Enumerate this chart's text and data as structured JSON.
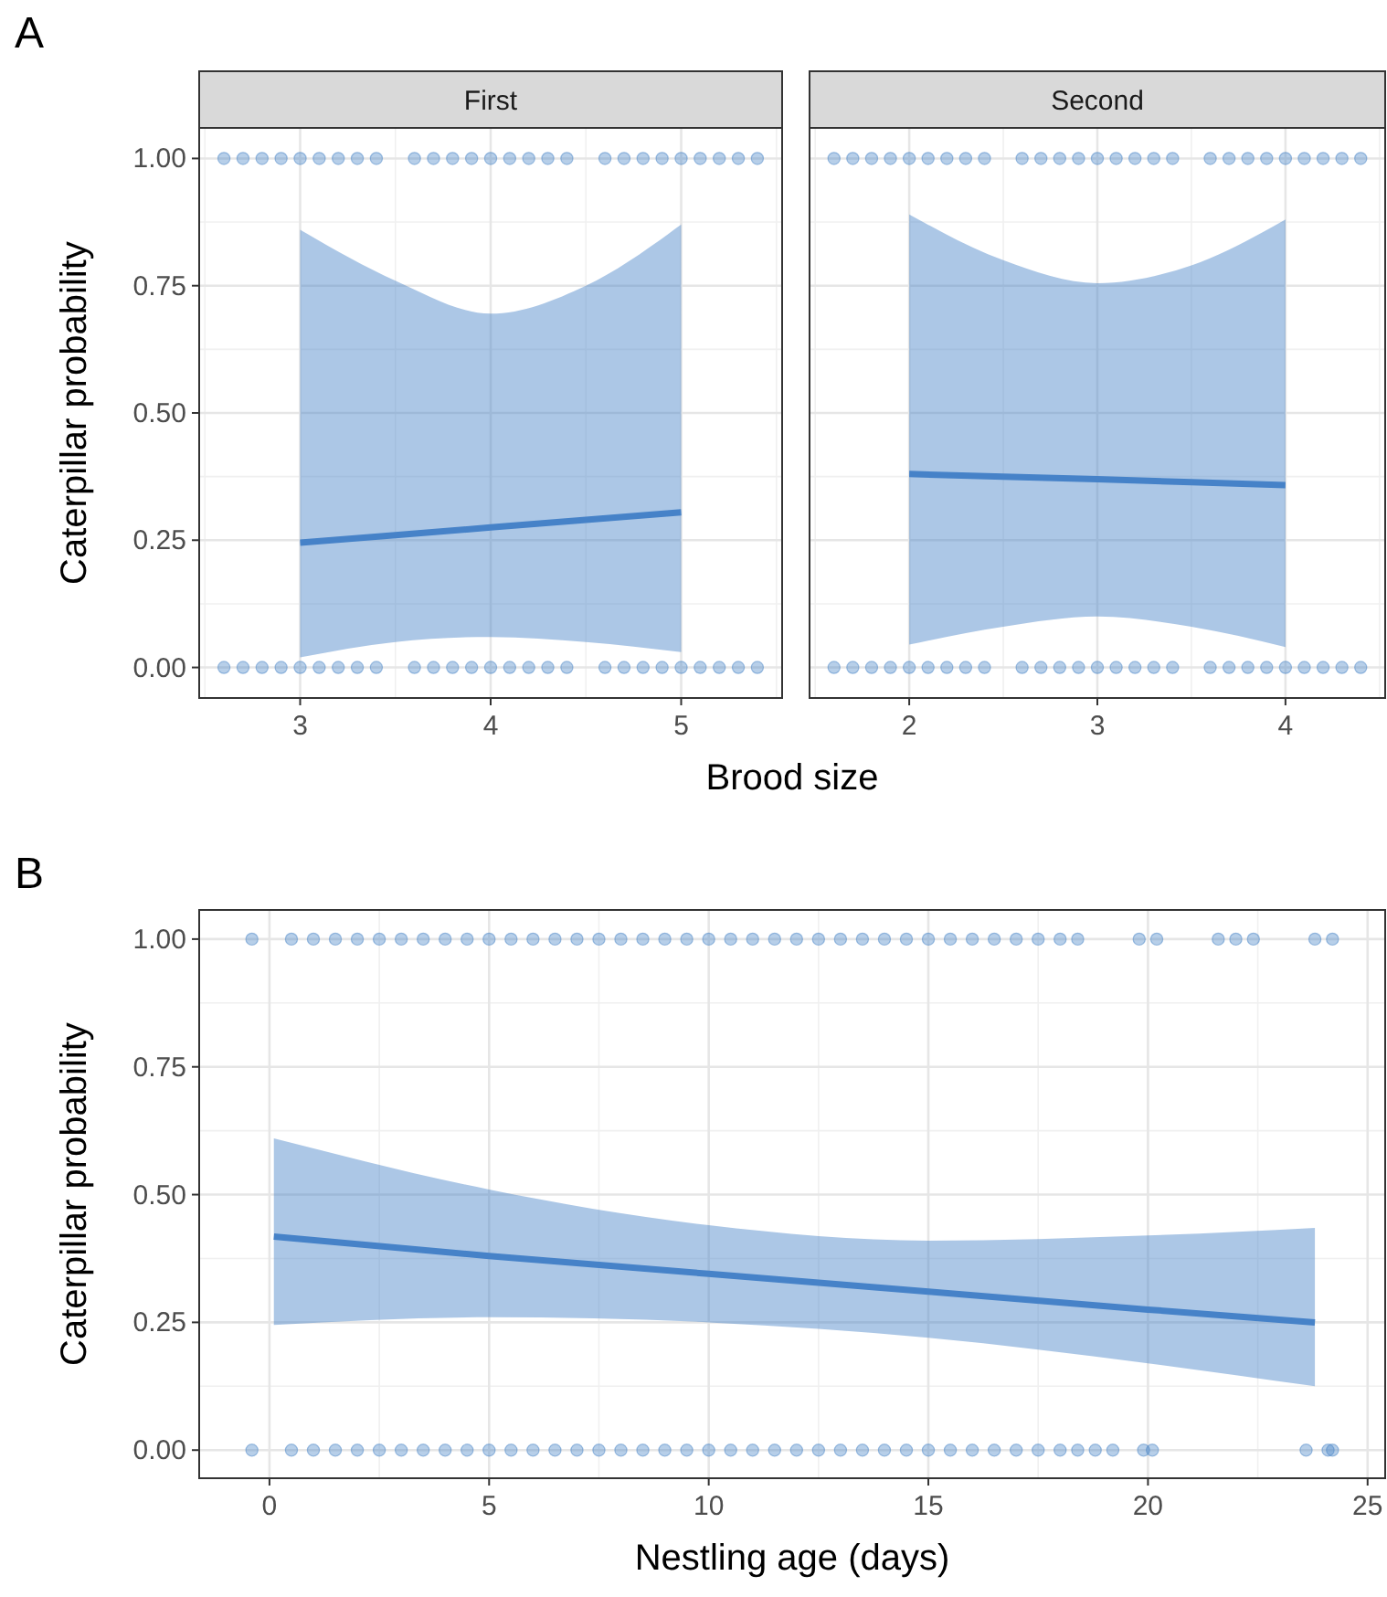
{
  "chart_data": [
    {
      "type": "scatter",
      "title": "A",
      "subtitle": "First",
      "xlabel": "Brood size",
      "ylabel": "Caterpillar probability",
      "xlim": [
        2.47,
        5.53
      ],
      "ylim": [
        -0.06,
        1.06
      ],
      "xticks": [
        3,
        4,
        5
      ],
      "yticks": [
        {
          "value": 0,
          "label": "0.00"
        },
        {
          "value": 0.25,
          "label": "0.25"
        },
        {
          "value": 0.5,
          "label": "0.50"
        },
        {
          "value": 0.75,
          "label": "0.75"
        },
        {
          "value": 1,
          "label": "1.00"
        }
      ],
      "grid": true,
      "marker": "circle",
      "series": [
        {
          "color": "#4a86c8",
          "x": [
            2.6,
            2.7,
            2.8,
            2.9,
            3.0,
            3.1,
            3.2,
            3.3,
            3.4,
            3.6,
            3.7,
            3.8,
            3.9,
            4.0,
            4.1,
            4.2,
            4.3,
            4.4,
            4.6,
            4.7,
            4.8,
            4.9,
            5.0,
            5.1,
            5.2,
            5.3,
            5.4,
            2.6,
            2.7,
            2.8,
            2.9,
            3.0,
            3.1,
            3.2,
            3.3,
            3.4,
            3.6,
            3.7,
            3.8,
            3.9,
            4.0,
            4.1,
            4.2,
            4.3,
            4.4,
            4.6,
            4.7,
            4.8,
            4.9,
            5.0,
            5.1,
            5.2,
            5.3,
            5.4
          ],
          "values": [
            1,
            1,
            1,
            1,
            1,
            1,
            1,
            1,
            1,
            1,
            1,
            1,
            1,
            1,
            1,
            1,
            1,
            1,
            1,
            1,
            1,
            1,
            1,
            1,
            1,
            1,
            1,
            0,
            0,
            0,
            0,
            0,
            0,
            0,
            0,
            0,
            0,
            0,
            0,
            0,
            0,
            0,
            0,
            0,
            0,
            0,
            0,
            0,
            0,
            0,
            0,
            0,
            0,
            0
          ]
        },
        {
          "type": "line",
          "marker": "none",
          "color": "#4682c8",
          "x": [
            3,
            3.5,
            4,
            4.5,
            5
          ],
          "values": [
            0.245,
            0.26,
            0.275,
            0.29,
            0.305
          ],
          "lower": [
            0.02,
            0.05,
            0.06,
            0.05,
            0.03
          ],
          "upper": [
            0.86,
            0.76,
            0.695,
            0.75,
            0.87
          ]
        }
      ]
    },
    {
      "type": "scatter",
      "subtitle": "Second",
      "xlim": [
        1.47,
        4.53
      ],
      "ylim": [
        -0.06,
        1.06
      ],
      "xticks": [
        2,
        3,
        4
      ],
      "yticks": [
        0,
        0.25,
        0.5,
        0.75,
        1
      ],
      "tick_labels": "x",
      "grid": true,
      "marker": "circle",
      "series": [
        {
          "color": "#4a86c8",
          "x": [
            1.6,
            1.7,
            1.8,
            1.9,
            2.0,
            2.1,
            2.2,
            2.3,
            2.4,
            2.6,
            2.7,
            2.8,
            2.9,
            3.0,
            3.1,
            3.2,
            3.3,
            3.4,
            3.6,
            3.7,
            3.8,
            3.9,
            4.0,
            4.1,
            4.2,
            4.3,
            4.4,
            1.6,
            1.7,
            1.8,
            1.9,
            2.0,
            2.1,
            2.2,
            2.3,
            2.4,
            2.6,
            2.7,
            2.8,
            2.9,
            3.0,
            3.1,
            3.2,
            3.3,
            3.4,
            3.6,
            3.7,
            3.8,
            3.9,
            4.0,
            4.1,
            4.2,
            4.3,
            4.4
          ],
          "values": [
            1,
            1,
            1,
            1,
            1,
            1,
            1,
            1,
            1,
            1,
            1,
            1,
            1,
            1,
            1,
            1,
            1,
            1,
            1,
            1,
            1,
            1,
            1,
            1,
            1,
            1,
            1,
            0,
            0,
            0,
            0,
            0,
            0,
            0,
            0,
            0,
            0,
            0,
            0,
            0,
            0,
            0,
            0,
            0,
            0,
            0,
            0,
            0,
            0,
            0,
            0,
            0,
            0,
            0
          ]
        },
        {
          "type": "line",
          "marker": "none",
          "color": "#4682c8",
          "x": [
            2,
            2.5,
            3,
            3.5,
            4
          ],
          "values": [
            0.38,
            0.375,
            0.37,
            0.364,
            0.358
          ],
          "lower": [
            0.045,
            0.08,
            0.1,
            0.08,
            0.04
          ],
          "upper": [
            0.89,
            0.8,
            0.755,
            0.79,
            0.88
          ]
        }
      ]
    },
    {
      "type": "scatter",
      "title": "B",
      "xlabel": "Nestling age (days)",
      "ylabel": "Caterpillar probability",
      "xlim": [
        -1.6,
        25.4
      ],
      "ylim": [
        -0.055,
        1.057
      ],
      "xticks": [
        0,
        5,
        10,
        15,
        20,
        25
      ],
      "yticks": [
        {
          "value": 0,
          "label": "0.00"
        },
        {
          "value": 0.25,
          "label": "0.25"
        },
        {
          "value": 0.5,
          "label": "0.50"
        },
        {
          "value": 0.75,
          "label": "0.75"
        },
        {
          "value": 1,
          "label": "1.00"
        }
      ],
      "grid": true,
      "marker": "circle",
      "series": [
        {
          "color": "#4a86c8",
          "x": [
            -0.4,
            0.5,
            1,
            1.5,
            2,
            2.5,
            3,
            3.5,
            4,
            4.5,
            5,
            5.5,
            6,
            6.5,
            7,
            7.5,
            8,
            8.5,
            9,
            9.5,
            10,
            10.5,
            11,
            11.5,
            12,
            12.5,
            13,
            13.5,
            14,
            14.5,
            15,
            15.5,
            16,
            16.5,
            17,
            17.5,
            18,
            18.4,
            19.8,
            20.2,
            21.6,
            22,
            22.4,
            23.8,
            24.2,
            -0.4,
            0.5,
            1,
            1.5,
            2,
            2.5,
            3,
            3.5,
            4,
            4.5,
            5,
            5.5,
            6,
            6.5,
            7,
            7.5,
            8,
            8.5,
            9,
            9.5,
            10,
            10.5,
            11,
            11.5,
            12,
            12.5,
            13,
            13.5,
            14,
            14.5,
            15,
            15.5,
            16,
            16.5,
            17,
            17.5,
            18,
            18.4,
            18.8,
            19.2,
            19.9,
            20.1,
            23.6,
            24.1,
            24.2
          ],
          "values": [
            1,
            1,
            1,
            1,
            1,
            1,
            1,
            1,
            1,
            1,
            1,
            1,
            1,
            1,
            1,
            1,
            1,
            1,
            1,
            1,
            1,
            1,
            1,
            1,
            1,
            1,
            1,
            1,
            1,
            1,
            1,
            1,
            1,
            1,
            1,
            1,
            1,
            1,
            1,
            1,
            1,
            1,
            1,
            1,
            1,
            0,
            0,
            0,
            0,
            0,
            0,
            0,
            0,
            0,
            0,
            0,
            0,
            0,
            0,
            0,
            0,
            0,
            0,
            0,
            0,
            0,
            0,
            0,
            0,
            0,
            0,
            0,
            0,
            0,
            0,
            0,
            0,
            0,
            0,
            0,
            0,
            0,
            0,
            0,
            0,
            0,
            0,
            0,
            0,
            0
          ]
        },
        {
          "type": "line",
          "marker": "none",
          "color": "#4682c8",
          "x": [
            0.1,
            5,
            10,
            15,
            20,
            23.8
          ],
          "values": [
            0.418,
            0.38,
            0.345,
            0.31,
            0.275,
            0.25
          ],
          "lower": [
            0.245,
            0.26,
            0.25,
            0.22,
            0.17,
            0.125
          ],
          "upper": [
            0.61,
            0.51,
            0.44,
            0.41,
            0.42,
            0.435
          ]
        }
      ]
    }
  ]
}
